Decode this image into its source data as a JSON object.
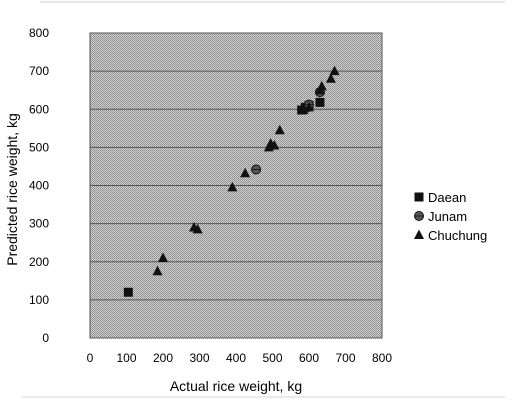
{
  "chart_data": {
    "type": "scatter",
    "title": "",
    "xlabel": "Actual rice weight, kg",
    "ylabel": "Predicted rice weight, kg",
    "xlim": [
      0,
      800
    ],
    "ylim": [
      0,
      800
    ],
    "xticks": [
      "0",
      "100",
      "200",
      "300",
      "400",
      "500",
      "600",
      "700",
      "800"
    ],
    "yticks": [
      "0",
      "100",
      "200",
      "300",
      "400",
      "500",
      "600",
      "700",
      "800"
    ],
    "grid": true,
    "legend_position": "right",
    "series": [
      {
        "name": "Daean",
        "marker": "square",
        "points": [
          {
            "x": 105,
            "y": 120
          },
          {
            "x": 580,
            "y": 598
          },
          {
            "x": 590,
            "y": 605
          },
          {
            "x": 600,
            "y": 610
          },
          {
            "x": 630,
            "y": 618
          }
        ]
      },
      {
        "name": "Junam",
        "marker": "circle",
        "points": [
          {
            "x": 455,
            "y": 442
          },
          {
            "x": 600,
            "y": 612
          },
          {
            "x": 630,
            "y": 645
          }
        ]
      },
      {
        "name": "Chuchung",
        "marker": "triangle",
        "points": [
          {
            "x": 185,
            "y": 175
          },
          {
            "x": 200,
            "y": 210
          },
          {
            "x": 285,
            "y": 290
          },
          {
            "x": 295,
            "y": 285
          },
          {
            "x": 390,
            "y": 395
          },
          {
            "x": 425,
            "y": 432
          },
          {
            "x": 490,
            "y": 500
          },
          {
            "x": 495,
            "y": 510
          },
          {
            "x": 505,
            "y": 505
          },
          {
            "x": 520,
            "y": 545
          },
          {
            "x": 585,
            "y": 598
          },
          {
            "x": 600,
            "y": 605
          },
          {
            "x": 630,
            "y": 650
          },
          {
            "x": 635,
            "y": 660
          },
          {
            "x": 660,
            "y": 680
          },
          {
            "x": 670,
            "y": 700
          }
        ]
      }
    ]
  }
}
